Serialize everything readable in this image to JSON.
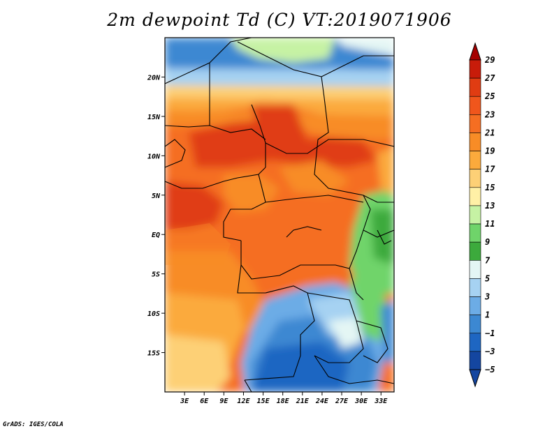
{
  "chart_data": {
    "type": "heatmap",
    "title": "2m dewpoint Td (C) VT:2019071906",
    "x_tick_labels": [
      "3E",
      "6E",
      "9E",
      "12E",
      "15E",
      "18E",
      "21E",
      "24E",
      "27E",
      "30E",
      "33E"
    ],
    "x_ticks": [
      3,
      6,
      9,
      12,
      15,
      18,
      21,
      24,
      27,
      30,
      33
    ],
    "y_tick_labels": [
      "20N",
      "15N",
      "10N",
      "5N",
      "EQ",
      "5S",
      "10S",
      "15S"
    ],
    "y_ticks": [
      20,
      15,
      10,
      5,
      0,
      -5,
      -10,
      -15
    ],
    "xlim": [
      0,
      35
    ],
    "ylim": [
      -20,
      25
    ],
    "colorbar": {
      "labels": [
        "29",
        "27",
        "25",
        "23",
        "21",
        "19",
        "17",
        "15",
        "13",
        "11",
        "9",
        "7",
        "5",
        "3",
        "1",
        "−1",
        "−3",
        "−5"
      ],
      "levels": [
        29,
        27,
        25,
        23,
        21,
        19,
        17,
        15,
        13,
        11,
        9,
        7,
        5,
        3,
        1,
        -1,
        -3,
        -5
      ],
      "colors": [
        "#a50000",
        "#c81c0a",
        "#e03c12",
        "#f0561c",
        "#f56e22",
        "#f88c26",
        "#fbaa3c",
        "#fdd076",
        "#fff0a6",
        "#c6f2a4",
        "#6fd46a",
        "#3caa3c",
        "#e4f6f4",
        "#a6d2f2",
        "#6cace6",
        "#3c88d2",
        "#1e66c2",
        "#1446a0"
      ],
      "extend": "both"
    },
    "credit": "GrADS: IGES/COLA"
  }
}
